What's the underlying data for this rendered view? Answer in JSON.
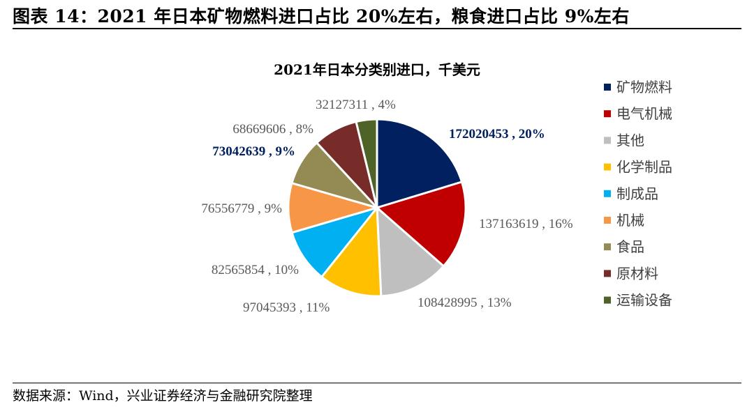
{
  "figure": {
    "title": "图表 14：2021 年日本矿物燃料进口占比 20%左右，粮食进口占比 9%左右",
    "source": "数据来源：Wind，兴业证券经济与金融研究院整理"
  },
  "chart_data": {
    "type": "pie",
    "title": "2021年日本分类别进口，千美元",
    "legend_position": "right",
    "slices": [
      {
        "name": "矿物燃料",
        "value": 172020453,
        "percent": "20%",
        "label": "172020453 , 20%",
        "color": "#002060",
        "highlight": true
      },
      {
        "name": "电气机械",
        "value": 137163619,
        "percent": "16%",
        "label": "137163619 , 16%",
        "color": "#C00000",
        "highlight": false
      },
      {
        "name": "其他",
        "value": 108428995,
        "percent": "13%",
        "label": "108428995 , 13%",
        "color": "#BFBFBF",
        "highlight": false
      },
      {
        "name": "化学制品",
        "value": 97045393,
        "percent": "11%",
        "label": "97045393 , 11%",
        "color": "#FFC000",
        "highlight": false
      },
      {
        "name": "制成品",
        "value": 82565854,
        "percent": "10%",
        "label": "82565854 , 10%",
        "color": "#00B0F0",
        "highlight": false
      },
      {
        "name": "机械",
        "value": 76556779,
        "percent": "9%",
        "label": "76556779 , 9%",
        "color": "#F79646",
        "highlight": false
      },
      {
        "name": "食品",
        "value": 73042639,
        "percent": "9%",
        "label": "73042639 , 9%",
        "color": "#948A54",
        "highlight": true
      },
      {
        "name": "原材料",
        "value": 68669606,
        "percent": "8%",
        "label": "68669606 , 8%",
        "color": "#772C2A",
        "highlight": false
      },
      {
        "name": "运输设备",
        "value": 32127311,
        "percent": "4%",
        "label": "32127311 , 4%",
        "color": "#4F6228",
        "highlight": false
      }
    ]
  }
}
